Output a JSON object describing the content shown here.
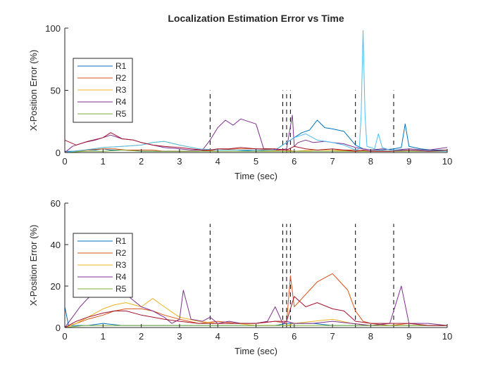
{
  "chart_data": [
    {
      "type": "line",
      "title": "Localization Estimation Error vs Time",
      "xlabel": "Time (sec)",
      "ylabel": "X-Position Error (%)",
      "xlim": [
        0,
        10
      ],
      "ylim": [
        0,
        100
      ],
      "xticks": [
        0,
        1,
        2,
        3,
        4,
        5,
        6,
        7,
        8,
        9,
        10
      ],
      "yticks": [
        0,
        50,
        100
      ],
      "grid": false,
      "legend": "upper-left",
      "event_lines": {
        "x": [
          3.8,
          5.7,
          5.8,
          5.9,
          7.6,
          8.6
        ],
        "y_top": 50
      },
      "series": [
        {
          "name": "R1",
          "color": "#0072BD",
          "x": [
            0,
            0.2,
            0.5,
            0.8,
            1.0,
            1.2,
            1.5,
            1.8,
            2.0,
            2.3,
            2.6,
            3.0,
            3.5,
            3.8,
            4.0,
            4.5,
            5.0,
            5.5,
            5.8,
            6.0,
            6.2,
            6.4,
            6.6,
            6.8,
            7.0,
            7.3,
            7.6,
            7.8,
            8.0,
            8.3,
            8.6,
            8.8,
            8.9,
            9.0,
            9.3,
            9.6,
            10
          ],
          "values": [
            1,
            1,
            2,
            2,
            3,
            2,
            2,
            2,
            1,
            1,
            1,
            1,
            1,
            2,
            2,
            2,
            1,
            2,
            8,
            12,
            16,
            18,
            26,
            20,
            19,
            17,
            6,
            3,
            2,
            2,
            3,
            4,
            23,
            5,
            3,
            2,
            2
          ]
        },
        {
          "name": "R2",
          "color": "#D95319",
          "x": [
            0,
            0.3,
            0.6,
            1.0,
            1.3,
            1.6,
            2.0,
            2.3,
            2.6,
            3.0,
            3.5,
            4.0,
            4.5,
            5.0,
            5.5,
            5.8,
            6.0,
            6.5,
            7.0,
            7.5,
            8.0,
            8.5,
            9.0,
            9.5,
            10
          ],
          "values": [
            0,
            1,
            2,
            3,
            3,
            2,
            2,
            2,
            1,
            1,
            1,
            2,
            3,
            3,
            2,
            2,
            1,
            2,
            2,
            2,
            1,
            1,
            2,
            1,
            1
          ]
        },
        {
          "name": "R3",
          "color": "#EDB120",
          "x": [
            0,
            0.5,
            1.0,
            1.5,
            2.0,
            2.3,
            2.6,
            3.0,
            3.5,
            4.0,
            5.0,
            5.8,
            6.0,
            6.5,
            7.0,
            7.5,
            8.0,
            8.5,
            9.0,
            10
          ],
          "values": [
            0,
            2,
            4,
            5,
            6,
            8,
            9,
            6,
            3,
            2,
            2,
            1,
            1,
            2,
            2,
            1,
            1,
            1,
            2,
            1
          ]
        },
        {
          "name": "R4",
          "color": "#7E2F8E",
          "x": [
            0,
            0.2,
            0.5,
            0.8,
            1.0,
            1.2,
            1.5,
            1.8,
            2.0,
            2.3,
            2.6,
            3.0,
            3.3,
            3.6,
            3.8,
            4.0,
            4.2,
            4.4,
            4.6,
            4.8,
            5.0,
            5.2,
            5.4,
            5.6,
            5.8,
            5.95,
            6.0,
            6.1,
            6.3,
            6.5,
            6.8,
            7.0,
            7.3,
            7.6,
            7.8,
            8.0,
            8.3,
            8.6,
            9.0,
            9.5,
            10
          ],
          "values": [
            0,
            5,
            8,
            10,
            12,
            14,
            11,
            10,
            8,
            6,
            4,
            3,
            2,
            2,
            10,
            20,
            26,
            22,
            27,
            25,
            23,
            3,
            3,
            2,
            3,
            30,
            5,
            8,
            10,
            8,
            9,
            8,
            7,
            4,
            3,
            2,
            3,
            2,
            3,
            2,
            4
          ]
        },
        {
          "name": "R5",
          "color": "#77AC30",
          "x": [
            0,
            0.5,
            1.0,
            1.5,
            2.0,
            2.5,
            3.0,
            3.5,
            4.0,
            5.0,
            6.0,
            7.0,
            8.0,
            9.0,
            10
          ],
          "values": [
            0,
            1,
            1,
            2,
            1,
            1,
            1,
            1,
            1,
            1,
            1,
            1,
            1,
            1,
            1
          ]
        },
        {
          "name": "",
          "color": "#4DBEEE",
          "x": [
            0,
            0.5,
            1.0,
            1.5,
            2.0,
            2.3,
            2.6,
            3.0,
            3.5,
            4.0,
            5.0,
            5.5,
            5.8,
            6.0,
            6.3,
            6.6,
            7.0,
            7.3,
            7.6,
            7.7,
            7.75,
            7.8,
            7.85,
            7.9,
            8.0,
            8.1,
            8.2,
            8.3,
            8.5,
            9.0,
            10
          ],
          "values": [
            0,
            2,
            4,
            5,
            6,
            8,
            9,
            6,
            3,
            2,
            2,
            2,
            8,
            12,
            15,
            10,
            8,
            6,
            2,
            3,
            30,
            98,
            30,
            5,
            4,
            3,
            15,
            4,
            2,
            2,
            1
          ]
        },
        {
          "name": "",
          "color": "#A2142F",
          "x": [
            0,
            0.3,
            0.6,
            1.0,
            1.2,
            1.5,
            1.8,
            2.0,
            2.3,
            2.6,
            3.0,
            3.3,
            3.6,
            3.8,
            4.0,
            4.3,
            4.6,
            5.0,
            5.5,
            5.8,
            6.0,
            6.3,
            6.6,
            7.0,
            7.3,
            7.6,
            7.8,
            8.0,
            8.5,
            9.0,
            9.5,
            10
          ],
          "values": [
            10,
            6,
            9,
            12,
            16,
            11,
            10,
            8,
            6,
            5,
            4,
            3,
            2,
            2,
            3,
            3,
            4,
            3,
            3,
            2,
            5,
            3,
            2,
            3,
            2,
            1,
            2,
            1,
            1,
            2,
            1,
            2
          ]
        }
      ]
    },
    {
      "type": "line",
      "title": "",
      "xlabel": "Time (sec)",
      "ylabel": "X-Position Error (%)",
      "xlim": [
        0,
        10
      ],
      "ylim": [
        0,
        60
      ],
      "xticks": [
        0,
        1,
        2,
        3,
        4,
        5,
        6,
        7,
        8,
        9,
        10
      ],
      "yticks": [
        0,
        20,
        40,
        60
      ],
      "grid": false,
      "legend": "upper-left",
      "event_lines": {
        "x": [
          3.8,
          5.7,
          5.8,
          5.9,
          7.6,
          8.6
        ],
        "y_top": 50
      },
      "series": [
        {
          "name": "R1",
          "color": "#0072BD",
          "x": [
            0,
            0.1,
            0.3,
            0.6,
            1.0,
            1.5,
            2.0,
            2.5,
            3.0,
            3.5,
            4.0,
            4.5,
            5.0,
            5.5,
            5.8,
            6.0,
            6.5,
            7.0,
            7.5,
            8.0,
            8.5,
            9.0,
            9.5,
            10
          ],
          "values": [
            10,
            1,
            1,
            1,
            2,
            1,
            1,
            1,
            1,
            1,
            1,
            1,
            1,
            1,
            2,
            2,
            2,
            1,
            1,
            1,
            1,
            1,
            1,
            1
          ]
        },
        {
          "name": "R2",
          "color": "#D95319",
          "x": [
            0,
            0.3,
            0.6,
            1.0,
            1.3,
            1.6,
            2.0,
            2.3,
            2.6,
            3.0,
            3.5,
            4.0,
            4.5,
            5.0,
            5.5,
            5.8,
            5.9,
            6.0,
            6.2,
            6.4,
            6.6,
            6.8,
            7.0,
            7.2,
            7.4,
            7.6,
            7.8,
            8.0,
            8.5,
            9.0,
            9.5,
            10
          ],
          "values": [
            0,
            2,
            4,
            6,
            8,
            9,
            9,
            8,
            6,
            4,
            2,
            3,
            2,
            2,
            3,
            2,
            25,
            10,
            14,
            18,
            22,
            24,
            26,
            22,
            18,
            8,
            3,
            2,
            1,
            2,
            1,
            1
          ]
        },
        {
          "name": "R3",
          "color": "#EDB120",
          "x": [
            0,
            0.3,
            0.6,
            1.0,
            1.3,
            1.6,
            2.0,
            2.3,
            2.6,
            3.0,
            3.5,
            4.0,
            4.5,
            5.0,
            5.5,
            5.8,
            6.0,
            6.5,
            7.0,
            7.5,
            8.0,
            8.5,
            9.0,
            9.5,
            10
          ],
          "values": [
            0,
            2,
            5,
            9,
            11,
            12,
            10,
            14,
            10,
            5,
            3,
            2,
            2,
            1,
            1,
            1,
            2,
            3,
            4,
            2,
            1,
            1,
            1,
            1,
            1
          ]
        },
        {
          "name": "R4",
          "color": "#7E2F8E",
          "x": [
            0,
            0.2,
            0.4,
            0.6,
            0.8,
            1.0,
            1.2,
            1.4,
            1.6,
            1.8,
            2.0,
            2.3,
            2.6,
            2.8,
            3.0,
            3.1,
            3.3,
            3.6,
            3.8,
            4.0,
            4.3,
            4.6,
            5.0,
            5.3,
            5.5,
            5.7,
            5.8,
            6.0,
            6.5,
            7.0,
            7.5,
            8.0,
            8.5,
            8.8,
            9.0,
            9.5,
            10
          ],
          "values": [
            0,
            5,
            10,
            14,
            17,
            19,
            17,
            19,
            16,
            13,
            10,
            8,
            5,
            2,
            4,
            18,
            4,
            3,
            5,
            2,
            3,
            2,
            2,
            3,
            10,
            2,
            3,
            2,
            2,
            3,
            2,
            1,
            2,
            20,
            2,
            2,
            1
          ]
        },
        {
          "name": "R5",
          "color": "#77AC30",
          "x": [
            0,
            0.5,
            1.0,
            1.5,
            2.0,
            2.5,
            3.0,
            3.5,
            4.0,
            5.0,
            6.0,
            7.0,
            8.0,
            9.0,
            10
          ],
          "values": [
            0,
            1,
            1,
            1,
            1,
            1,
            1,
            1,
            1,
            1,
            1,
            1,
            1,
            1,
            1
          ]
        },
        {
          "name": "",
          "color": "#A2142F",
          "x": [
            0,
            0.3,
            0.6,
            1.0,
            1.3,
            1.6,
            2.0,
            2.3,
            2.6,
            3.0,
            3.5,
            4.0,
            4.5,
            5.0,
            5.5,
            5.8,
            6.0,
            6.3,
            6.6,
            7.0,
            7.3,
            7.6,
            8.0,
            8.5,
            9.0,
            9.5,
            10
          ],
          "values": [
            0,
            3,
            5,
            7,
            8,
            8,
            6,
            5,
            4,
            3,
            2,
            2,
            2,
            2,
            3,
            3,
            15,
            10,
            12,
            9,
            8,
            3,
            2,
            2,
            2,
            1,
            1
          ]
        }
      ]
    }
  ]
}
